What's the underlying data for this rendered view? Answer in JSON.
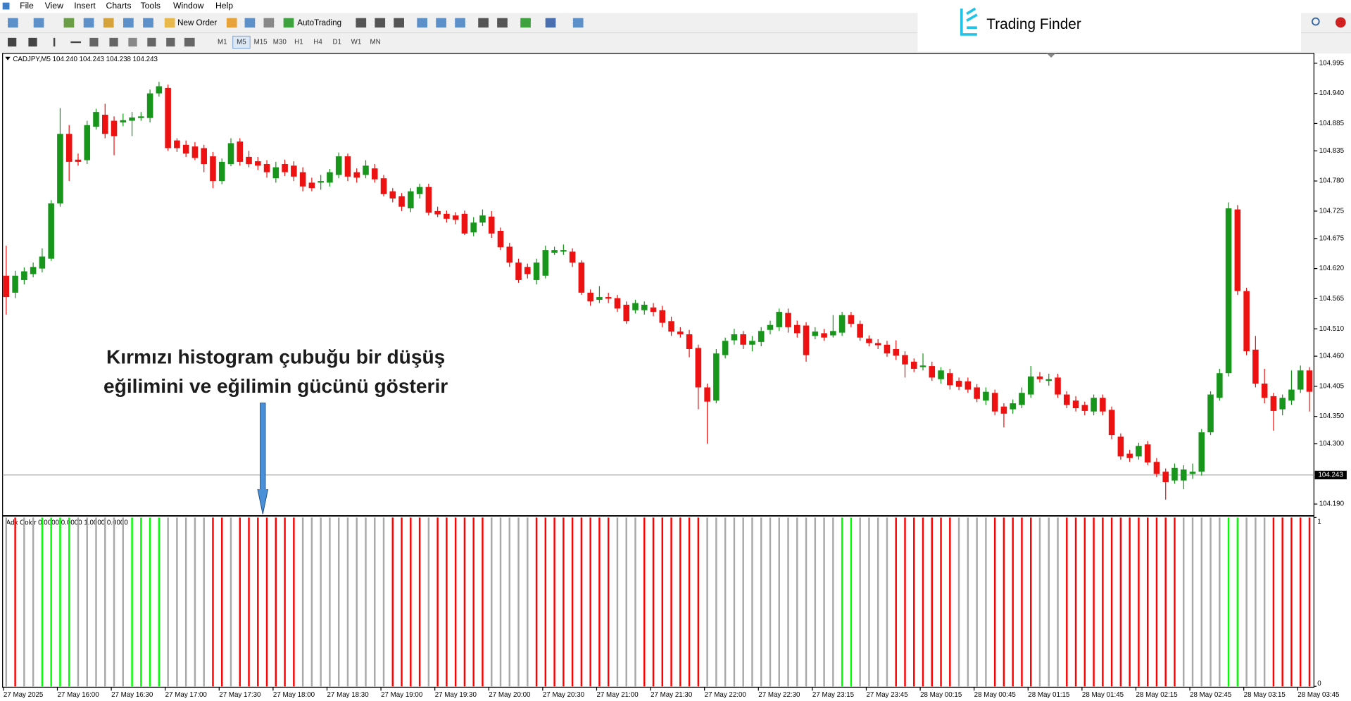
{
  "menu": [
    "File",
    "View",
    "Insert",
    "Charts",
    "Tools",
    "Window",
    "Help"
  ],
  "toolbar": {
    "new_order": "New Order",
    "auto_trading": "AutoTrading",
    "timeframes": [
      "M1",
      "M5",
      "M15",
      "M30",
      "H1",
      "H4",
      "D1",
      "W1",
      "MN"
    ]
  },
  "logo": "Trading Finder",
  "chart_data": [
    {
      "type": "candlestick",
      "title": "CADJPY,M5  104.240 104.243 104.238 104.243",
      "annotation": [
        "Kırmızı histogram çubuğu bir düşüş",
        "eğilimini ve eğilimin gücünü gösterir"
      ],
      "up_color": "#17961b",
      "down_color": "#ee1111",
      "categories": [
        "27 May 2025",
        null,
        null,
        null,
        null,
        null,
        "27 May 16:00",
        null,
        null,
        null,
        null,
        null,
        "27 May 16:30",
        null,
        null,
        null,
        null,
        null,
        "27 May 17:00",
        null,
        null,
        null,
        null,
        null,
        "27 May 17:30",
        null,
        null,
        null,
        null,
        null,
        "27 May 18:00",
        null,
        null,
        null,
        null,
        null,
        "27 May 18:30",
        null,
        null,
        null,
        null,
        null,
        "27 May 19:00",
        null,
        null,
        null,
        null,
        null,
        "27 May 19:30",
        null,
        null,
        null,
        null,
        null,
        "27 May 20:00",
        null,
        null,
        null,
        null,
        null,
        "27 May 20:30",
        null,
        null,
        null,
        null,
        null,
        "27 May 21:00",
        null,
        null,
        null,
        null,
        null,
        "27 May 21:30",
        null,
        null,
        null,
        null,
        null,
        "27 May 22:00",
        null,
        null,
        null,
        null,
        null,
        "27 May 22:30",
        null,
        null,
        null,
        null,
        null,
        "27 May 23:15",
        null,
        null,
        null,
        null,
        null,
        "27 May 23:45",
        null,
        null,
        null,
        null,
        null,
        "28 May 00:15",
        null,
        null,
        null,
        null,
        null,
        "28 May 00:45",
        null,
        null,
        null,
        null,
        null,
        "28 May 01:15",
        null,
        null,
        null,
        null,
        null,
        "28 May 01:45",
        null,
        null,
        null,
        null,
        null,
        "28 May 02:15",
        null,
        null,
        null,
        null,
        null,
        "28 May 02:45",
        null,
        null,
        null,
        null,
        null,
        "28 May 03:15",
        null,
        null,
        null,
        null,
        null,
        "28 May 03:45",
        null
      ],
      "open": [
        104.607,
        104.576,
        104.599,
        104.61,
        104.62,
        104.638,
        104.739,
        104.866,
        104.819,
        104.818,
        104.879,
        104.901,
        104.89,
        104.887,
        104.89,
        104.895,
        104.895,
        104.94,
        104.95,
        104.854,
        104.846,
        104.843,
        104.84,
        104.825,
        104.78,
        104.811,
        104.852,
        104.824,
        104.816,
        104.811,
        104.785,
        104.811,
        104.808,
        104.796,
        104.777,
        104.777,
        104.777,
        104.791,
        104.825,
        104.796,
        104.791,
        104.803,
        104.785,
        104.761,
        104.752,
        104.73,
        104.756,
        104.769,
        104.725,
        104.72,
        104.717,
        104.72,
        104.686,
        104.704,
        104.715,
        104.689,
        104.66,
        104.631,
        104.623,
        104.599,
        104.607,
        104.649,
        104.651,
        104.651,
        104.631,
        104.576,
        104.563,
        104.568,
        104.566,
        104.554,
        104.544,
        104.544,
        104.549,
        104.544,
        104.524,
        104.505,
        104.5,
        104.475,
        104.403,
        104.379,
        104.462,
        104.489,
        104.5,
        104.481,
        104.486,
        104.508,
        104.513,
        104.539,
        104.517,
        104.516,
        104.497,
        104.502,
        104.498,
        104.503,
        104.535,
        104.519,
        104.492,
        104.484,
        104.481,
        104.473,
        104.462,
        104.45,
        104.44,
        104.442,
        104.418,
        104.429,
        104.415,
        104.414,
        104.403,
        104.379,
        104.393,
        104.368,
        104.363,
        104.371,
        104.39,
        104.423,
        104.415,
        104.421,
        104.39,
        104.379,
        104.371,
        104.359,
        104.384,
        104.362,
        104.313,
        104.282,
        104.277,
        104.299,
        104.267,
        104.249,
        104.233,
        104.233,
        104.245,
        104.249,
        104.321,
        104.384,
        104.429,
        104.728,
        104.579,
        104.472,
        104.41,
        104.387,
        104.363,
        104.379,
        104.399,
        104.434
      ],
      "high": [
        104.662,
        104.616,
        104.622,
        104.631,
        104.657,
        104.745,
        104.913,
        104.882,
        104.83,
        104.89,
        104.912,
        104.921,
        104.898,
        104.903,
        104.906,
        104.906,
        104.947,
        104.961,
        104.956,
        104.858,
        104.854,
        104.851,
        104.846,
        104.833,
        104.821,
        104.858,
        104.858,
        104.835,
        104.824,
        104.818,
        104.815,
        104.819,
        104.816,
        104.805,
        104.786,
        104.791,
        104.802,
        104.832,
        104.83,
        104.803,
        104.818,
        104.811,
        104.791,
        104.767,
        104.758,
        104.767,
        104.775,
        104.775,
        104.733,
        104.726,
        104.723,
        104.726,
        104.714,
        104.728,
        104.725,
        104.695,
        104.667,
        104.638,
        104.629,
        104.638,
        104.662,
        104.66,
        104.664,
        104.657,
        104.635,
        104.582,
        104.588,
        104.576,
        104.572,
        104.56,
        104.563,
        104.56,
        104.557,
        104.552,
        104.532,
        104.513,
        104.508,
        104.481,
        104.41,
        104.473,
        104.494,
        104.51,
        104.506,
        104.497,
        104.513,
        104.525,
        104.547,
        104.547,
        104.525,
        104.522,
        104.513,
        104.51,
        104.535,
        104.541,
        104.541,
        104.525,
        104.498,
        104.491,
        104.488,
        104.489,
        104.469,
        104.456,
        104.465,
        104.45,
        104.44,
        104.437,
        104.421,
        104.421,
        104.409,
        104.403,
        104.399,
        104.374,
        104.381,
        104.403,
        104.442,
        104.431,
        104.428,
        104.428,
        104.396,
        104.387,
        104.377,
        104.39,
        104.39,
        104.368,
        104.319,
        104.289,
        104.302,
        104.305,
        104.274,
        104.255,
        104.264,
        104.261,
        104.264,
        104.327,
        104.396,
        104.437,
        104.741,
        104.736,
        104.585,
        104.497,
        104.437,
        104.393,
        104.39,
        104.434,
        104.443,
        104.44
      ],
      "low": [
        104.536,
        104.566,
        104.591,
        104.604,
        104.613,
        104.634,
        104.733,
        104.78,
        104.808,
        104.811,
        104.874,
        104.858,
        104.827,
        104.88,
        104.862,
        104.89,
        104.887,
        104.934,
        104.835,
        104.833,
        104.824,
        104.818,
        104.796,
        104.767,
        104.774,
        104.807,
        104.808,
        104.805,
        104.8,
        104.786,
        104.777,
        104.789,
        104.78,
        104.761,
        104.761,
        104.764,
        104.77,
        104.785,
        104.78,
        104.777,
        104.785,
        104.777,
        104.752,
        104.741,
        104.725,
        104.723,
        104.748,
        104.717,
        104.714,
        104.704,
        104.701,
        104.681,
        104.679,
        104.698,
        104.676,
        104.654,
        104.623,
        104.594,
        104.602,
        104.591,
        104.602,
        104.645,
        104.645,
        104.623,
        104.572,
        104.552,
        104.557,
        104.557,
        104.541,
        104.519,
        104.538,
        104.536,
        104.533,
        104.513,
        104.497,
        104.494,
        104.458,
        104.363,
        104.3,
        104.374,
        104.456,
        104.481,
        104.473,
        104.469,
        104.478,
        104.5,
        104.506,
        104.503,
        104.494,
        104.45,
        104.491,
        104.488,
        104.494,
        104.497,
        104.513,
        104.488,
        104.478,
        104.473,
        104.459,
        104.453,
        104.421,
        104.431,
        104.434,
        104.415,
        104.41,
        104.399,
        104.398,
        104.393,
        104.376,
        104.371,
        104.352,
        104.33,
        104.355,
        104.365,
        104.384,
        104.412,
        104.406,
        104.384,
        104.365,
        104.359,
        104.352,
        104.352,
        104.352,
        104.308,
        104.271,
        104.267,
        104.271,
        104.261,
        104.239,
        104.198,
        104.227,
        104.217,
        104.236,
        104.242,
        104.316,
        104.379,
        104.423,
        104.572,
        104.462,
        104.403,
        104.374,
        104.324,
        104.352,
        104.371,
        104.393,
        104.359
      ],
      "close": [
        104.568,
        104.607,
        104.615,
        104.623,
        104.642,
        104.739,
        104.866,
        104.815,
        104.815,
        104.882,
        104.906,
        104.866,
        104.862,
        104.891,
        104.896,
        104.898,
        104.94,
        104.953,
        104.84,
        104.84,
        104.83,
        104.822,
        104.811,
        104.78,
        104.815,
        104.849,
        104.815,
        104.811,
        104.808,
        104.796,
        104.805,
        104.796,
        104.788,
        104.77,
        104.767,
        104.78,
        104.796,
        104.825,
        104.788,
        104.786,
        104.808,
        104.783,
        104.756,
        104.748,
        104.733,
        104.761,
        104.769,
        104.722,
        104.719,
        104.711,
        104.709,
        104.684,
        104.704,
        104.717,
        104.684,
        104.659,
        104.631,
        104.599,
        104.61,
        104.631,
        104.654,
        104.654,
        104.654,
        104.631,
        104.576,
        104.56,
        104.568,
        104.565,
        104.547,
        104.524,
        104.557,
        104.554,
        104.541,
        104.521,
        104.505,
        104.5,
        104.473,
        104.403,
        104.377,
        104.465,
        104.488,
        104.5,
        104.481,
        104.488,
        104.506,
        104.517,
        104.541,
        104.513,
        104.502,
        104.462,
        104.505,
        104.494,
        104.506,
        104.535,
        104.519,
        104.494,
        104.484,
        104.48,
        104.465,
        104.461,
        104.445,
        104.437,
        104.443,
        104.421,
        104.434,
        104.407,
        104.404,
        104.399,
        104.382,
        104.395,
        104.359,
        104.355,
        104.374,
        104.393,
        104.423,
        104.418,
        104.418,
        104.39,
        104.371,
        104.365,
        104.36,
        104.384,
        104.359,
        104.316,
        104.277,
        104.274,
        104.296,
        104.266,
        104.245,
        104.23,
        104.256,
        104.253,
        104.249,
        104.321,
        104.39,
        104.429,
        104.73,
        104.579,
        104.469,
        104.41,
        104.384,
        104.36,
        104.384,
        104.399,
        104.434,
        104.395
      ],
      "last_price": 104.243,
      "ylim": [
        104.17,
        105.013
      ],
      "yticks": [
        104.995,
        {
          "value": 104.94,
          "label": "104.940"
        },
        104.885,
        104.835,
        {
          "value": 104.78,
          "label": "104.780"
        },
        104.725,
        104.675,
        {
          "value": 104.62,
          "label": "104.620"
        },
        104.565,
        {
          "value": 104.51,
          "label": "104.510"
        },
        {
          "value": 104.46,
          "label": "104.460"
        },
        104.405,
        {
          "value": 104.35,
          "label": "104.350"
        },
        {
          "value": 104.3,
          "label": "104.300"
        },
        {
          "value": 104.19,
          "label": "104.190"
        }
      ]
    },
    {
      "type": "bar",
      "title": "Adx Color 0.0000 0.0000 1.0000 0.0000",
      "values": [
        1,
        1,
        1,
        1,
        1,
        1,
        1,
        1,
        1,
        1,
        1,
        1,
        1,
        1,
        1,
        1,
        1,
        1,
        1,
        1,
        1,
        1,
        1,
        1,
        1,
        1,
        1,
        1,
        1,
        1,
        1,
        1,
        1,
        1,
        1,
        1,
        1,
        1,
        1,
        1,
        1,
        1,
        1,
        1,
        1,
        1,
        1,
        1,
        1,
        1,
        1,
        1,
        1,
        1,
        1,
        1,
        1,
        1,
        1,
        1,
        1,
        1,
        1,
        1,
        1,
        1,
        1,
        1,
        1,
        1,
        1,
        1,
        1,
        1,
        1,
        1,
        1,
        1,
        1,
        1,
        1,
        1,
        1,
        1,
        1,
        1,
        1,
        1,
        1,
        1,
        1,
        1,
        1,
        1,
        1,
        1,
        1,
        1,
        1,
        1,
        1,
        1,
        1,
        1,
        1,
        1,
        1,
        1,
        1,
        1,
        1,
        1,
        1,
        1,
        1,
        1,
        1,
        1,
        1,
        1,
        1,
        1,
        1,
        1,
        1,
        1,
        1,
        1,
        1,
        1,
        1,
        1,
        1,
        1,
        1,
        1,
        1,
        1,
        1,
        1,
        1,
        1,
        1,
        1,
        1,
        1
      ],
      "colors": [
        "darkgray",
        "red",
        "darkgray",
        "darkgray",
        "lime",
        "lime",
        "lime",
        "lime",
        "darkgray",
        "darkgray",
        "darkgray",
        "darkgray",
        "darkgray",
        "darkgray",
        "lime",
        "lime",
        "lime",
        "lime",
        "darkgray",
        "darkgray",
        "darkgray",
        "darkgray",
        "darkgray",
        "red",
        "red",
        "darkgray",
        "red",
        "red",
        "red",
        "red",
        "red",
        "red",
        "red",
        "darkgray",
        "darkgray",
        "darkgray",
        "darkgray",
        "darkgray",
        "darkgray",
        "darkgray",
        "darkgray",
        "darkgray",
        "darkgray",
        "red",
        "red",
        "red",
        "red",
        "darkgray",
        "red",
        "red",
        "red",
        "red",
        "red",
        "red",
        "darkgray",
        "darkgray",
        "darkgray",
        "darkgray",
        "darkgray",
        "red",
        "red",
        "red",
        "red",
        "red",
        "red",
        "red",
        "red",
        "red",
        "darkgray",
        "darkgray",
        "darkgray",
        "red",
        "red",
        "red",
        "red",
        "red",
        "red",
        "red",
        "darkgray",
        "darkgray",
        "darkgray",
        "darkgray",
        "darkgray",
        "darkgray",
        "darkgray",
        "darkgray",
        "darkgray",
        "darkgray",
        "darkgray",
        "darkgray",
        "darkgray",
        "darkgray",
        "darkgray",
        "lime",
        "lime",
        "darkgray",
        "darkgray",
        "darkgray",
        "darkgray",
        "red",
        "red",
        "red",
        "red",
        "red",
        "red",
        "red",
        "darkgray",
        "darkgray",
        "darkgray",
        "darkgray",
        "red",
        "red",
        "red",
        "red",
        "red",
        "darkgray",
        "darkgray",
        "darkgray",
        "red",
        "red",
        "red",
        "red",
        "red",
        "red",
        "red",
        "red",
        "red",
        "red",
        "red",
        "red",
        "red",
        "darkgray",
        "darkgray",
        "darkgray",
        "darkgray",
        "darkgray",
        "lime",
        "lime",
        "darkgray",
        "darkgray",
        "darkgray",
        "red",
        "red",
        "red",
        "red",
        "red"
      ],
      "ylim": [
        0,
        1
      ],
      "yticks": [
        0,
        1
      ]
    }
  ]
}
